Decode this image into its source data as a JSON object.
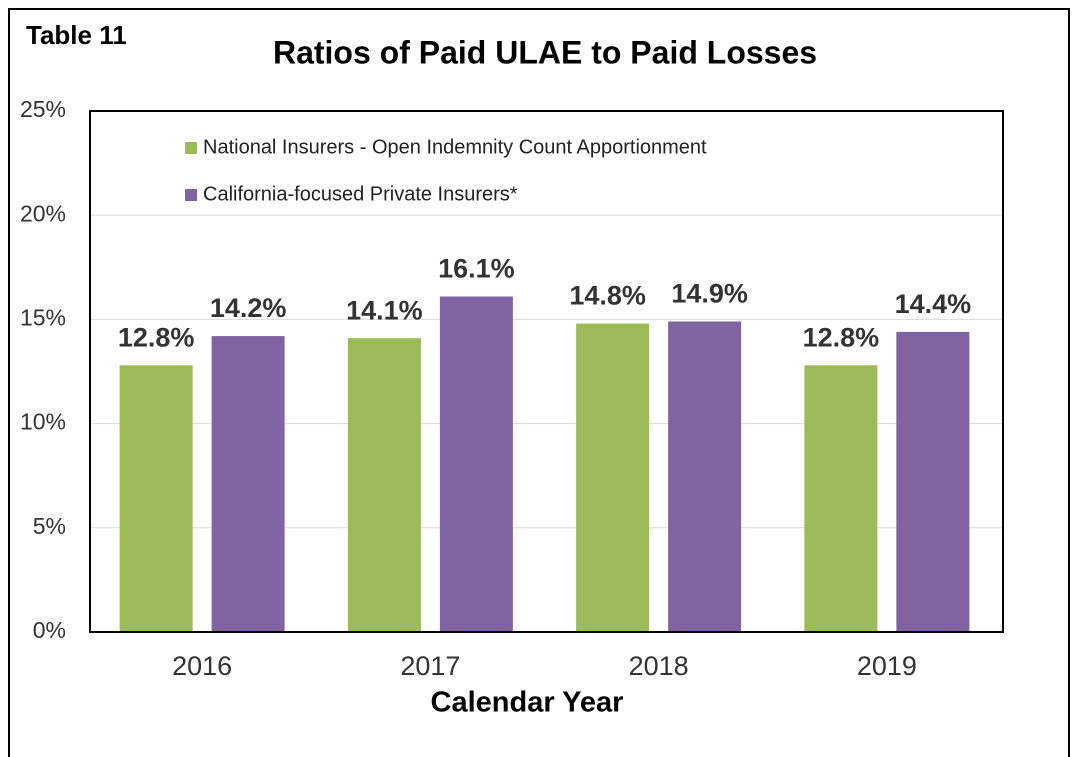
{
  "chart_data": {
    "type": "bar",
    "label": "Table 11",
    "title": "Ratios of Paid ULAE to Paid Losses",
    "x_label": "Calendar Year",
    "categories": [
      "2016",
      "2017",
      "2018",
      "2019"
    ],
    "series": [
      {
        "name": "National Insurers - Open Indemnity Count Apportionment",
        "color": "#9bbb59",
        "values": [
          12.8,
          14.1,
          14.8,
          12.8
        ],
        "value_labels": [
          "12.8%",
          "14.1%",
          "14.8%",
          "12.8%"
        ]
      },
      {
        "name": "California-focused Private Insurers*",
        "color": "#8064a2",
        "values": [
          14.2,
          16.1,
          14.9,
          14.4
        ],
        "value_labels": [
          "14.2%",
          "16.1%",
          "14.9%",
          "14.4%"
        ]
      }
    ],
    "ylim": [
      0,
      25
    ],
    "yticks": [
      {
        "value": 0,
        "label": "0%"
      },
      {
        "value": 5,
        "label": "5%"
      },
      {
        "value": 10,
        "label": "10%"
      },
      {
        "value": 15,
        "label": "15%"
      },
      {
        "value": 20,
        "label": "20%"
      },
      {
        "value": 25,
        "label": "25%"
      }
    ],
    "grid": true,
    "legend": "top-left"
  }
}
